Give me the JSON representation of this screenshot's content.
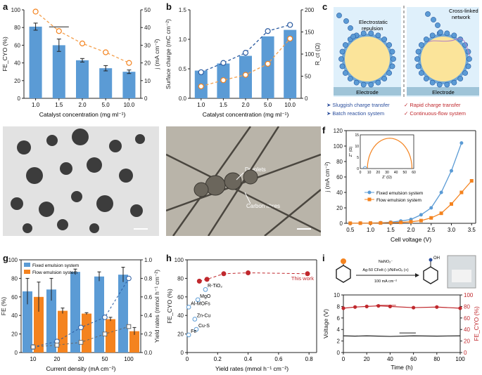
{
  "panel_letters": {
    "a": "a",
    "b": "b",
    "c": "c",
    "d": "d",
    "e": "e",
    "f": "f",
    "g": "g",
    "h": "h",
    "i": "i"
  },
  "colors": {
    "bar_blue": "#5b9bd5",
    "bar_orange": "#f4831f",
    "red": "#c0282d",
    "dark": "#222222",
    "navy": "#2a4d9c"
  },
  "panel_c": {
    "left_text_1": "Electrostatic",
    "left_text_2": "repulsion",
    "right_text_1": "Cross-linked",
    "right_text_2": "network",
    "electrode": "Electrode",
    "left_bullet_1": "➤ Sluggish charge transfer",
    "left_bullet_2": "➤ Batch reaction system",
    "right_bullet_1": "✓ Rapid charge transfer",
    "right_bullet_2": "✓ Continuous-flow system"
  },
  "panel_e": {
    "droplets": "Droplets",
    "fibres": "Carbon fibres"
  },
  "panel_i": {
    "reagent_1": "NaNO₂⁻",
    "reagent_2": "Ag-50 CFelt (–)/NiFeOₓ (+)",
    "reagent_3": "100 mA cm⁻²",
    "product_group": "OH"
  },
  "chart_data": [
    {
      "id": "a",
      "type": "bar",
      "categories": [
        "1.0",
        "1.5",
        "2.0",
        "5.0",
        "10.0"
      ],
      "series": [
        {
          "axis": "left",
          "values": [
            81,
            60,
            43,
            34,
            30
          ],
          "errors": [
            4,
            7,
            2,
            3,
            2
          ]
        },
        {
          "axis": "right",
          "values": [
            49,
            38,
            31,
            26,
            20
          ]
        }
      ],
      "xlabel": "Catalyst concentration (mg ml⁻¹)",
      "ylabel": "FE_CYO (%)",
      "ylabel_right": "j (mA cm⁻²)",
      "ylim": [
        0,
        100
      ],
      "ylim_right": [
        0,
        50
      ],
      "yticks": [
        0,
        20,
        40,
        60,
        80,
        100
      ],
      "yticks_right": [
        0,
        10,
        20,
        30,
        40,
        50
      ]
    },
    {
      "id": "b",
      "type": "bar",
      "categories": [
        "1.0",
        "1.5",
        "2.0",
        "5.0",
        "10.0"
      ],
      "series": [
        {
          "axis": "left",
          "values": [
            0.47,
            0.59,
            0.72,
            1.05,
            1.16
          ]
        },
        {
          "axis": "right",
          "values": [
            59,
            80,
            103,
            152,
            166
          ]
        },
        {
          "axis": "right",
          "values": [
            27,
            41,
            53,
            78,
            135
          ]
        }
      ],
      "xlabel": "Catalyst concentration (mg ml⁻¹)",
      "ylabel": "Surface charge (mC cm⁻²)",
      "ylabel_right": "R_ct (Ω)",
      "ylim": [
        0,
        1.5
      ],
      "ylim_right": [
        0,
        200
      ],
      "yticks": [
        0,
        0.5,
        1.0,
        1.5
      ],
      "yticks_right": [
        0,
        50,
        100,
        150,
        200
      ]
    },
    {
      "id": "f",
      "type": "line",
      "x": [
        0.5,
        0.75,
        1.0,
        1.25,
        1.5,
        1.75,
        2.0,
        2.25,
        2.5,
        2.75,
        3.0,
        3.25
      ],
      "series": [
        {
          "name": "Fixed emulsion system",
          "values": [
            0.1,
            0.2,
            0.4,
            0.8,
            1.5,
            3,
            5,
            11,
            20,
            40,
            68,
            104
          ]
        },
        {
          "name": "Flow emulsion system",
          "values": [
            0.1,
            0.2,
            0.3,
            0.5,
            0.8,
            1.2,
            2,
            3.5,
            7,
            13,
            25,
            40
          ]
        }
      ],
      "x_extra_flow": [
        3.5
      ],
      "y_extra_flow": [
        55
      ],
      "xlabel": "Cell voltage (V)",
      "ylabel": "j (mA cm⁻²)",
      "xlim": [
        0.4,
        3.6
      ],
      "ylim": [
        0,
        120
      ],
      "xticks": [
        0.5,
        1.0,
        1.5,
        2.0,
        2.5,
        3.0,
        3.5
      ],
      "yticks": [
        0,
        20,
        40,
        60,
        80,
        100,
        120
      ],
      "inset": {
        "xlabel": "Z' (Ω)",
        "ylabel": "Z'' (Ω)",
        "xticks": [
          0,
          10,
          20,
          30,
          40,
          50,
          60
        ],
        "yticks": [
          0,
          5,
          10,
          15
        ],
        "xlim": [
          0,
          60
        ],
        "ylim": [
          0,
          15
        ]
      }
    },
    {
      "id": "g",
      "type": "bar",
      "categories": [
        "10",
        "20",
        "30",
        "50",
        "100"
      ],
      "series": [
        {
          "name": "Fixed emulsion system",
          "values": [
            66,
            68,
            87,
            82,
            84
          ],
          "errors": [
            14,
            12,
            3,
            5,
            8
          ]
        },
        {
          "name": "Flow emulsion system",
          "values": [
            60,
            45,
            42,
            36,
            23
          ],
          "errors": [
            16,
            3,
            1,
            2,
            4
          ]
        },
        {
          "axis": "right",
          "values": [
            0.06,
            0.12,
            0.27,
            0.38,
            0.8
          ]
        },
        {
          "axis": "right",
          "values": [
            0.06,
            0.08,
            0.11,
            0.2,
            0.28
          ]
        }
      ],
      "xlabel": "Current density (mA cm⁻²)",
      "ylabel": "FE (%)",
      "ylabel_right": "Yield rates (mmol h⁻¹ cm⁻²)",
      "ylim": [
        0,
        100
      ],
      "ylim_right": [
        0,
        1.0
      ],
      "yticks": [
        0,
        20,
        40,
        60,
        80,
        100
      ],
      "yticks_right": [
        0,
        0.2,
        0.4,
        0.6,
        0.8,
        1.0
      ],
      "legend": "top-left"
    },
    {
      "id": "h",
      "type": "scatter",
      "this_work": {
        "x": [
          0.08,
          0.13,
          0.24,
          0.4,
          0.79
        ],
        "y": [
          77,
          79,
          85,
          86,
          85
        ],
        "label": "This work"
      },
      "literature": [
        {
          "label": "MgO",
          "x": 0.07,
          "y": 57
        },
        {
          "label": "R-TiO₂",
          "x": 0.12,
          "y": 68
        },
        {
          "label": "Al-MOFs",
          "x": 0.01,
          "y": 49
        },
        {
          "label": "Zn-Cu",
          "x": 0.05,
          "y": 36
        },
        {
          "label": "Cu-S",
          "x": 0.06,
          "y": 25
        },
        {
          "label": "Fe",
          "x": 0.01,
          "y": 19
        }
      ],
      "xlabel": "Yield rates (mmol h⁻¹ cm⁻²)",
      "ylabel": "FE_CYO (%)",
      "xlim": [
        0,
        0.85
      ],
      "ylim": [
        0,
        100
      ],
      "xticks": [
        0,
        0.2,
        0.4,
        0.6,
        0.8
      ],
      "yticks": [
        0,
        20,
        40,
        60,
        80,
        100
      ]
    },
    {
      "id": "i",
      "type": "line",
      "x": [
        0,
        10,
        20,
        30,
        40,
        60,
        80,
        100
      ],
      "series": [
        {
          "axis": "right",
          "values": [
            77,
            79,
            80,
            81,
            80,
            78,
            79,
            77
          ]
        },
        {
          "axis": "left",
          "values": [
            2.9,
            2.85,
            2.9,
            2.85,
            2.8,
            2.9,
            2.85,
            2.9
          ]
        }
      ],
      "xlabel": "Time (h)",
      "ylabel": "Voltage (V)",
      "ylabel_right": "FE_CYO (%)",
      "xlim": [
        0,
        100
      ],
      "ylim": [
        0,
        10
      ],
      "ylim_right": [
        0,
        100
      ],
      "xticks": [
        0,
        20,
        40,
        60,
        80,
        100
      ],
      "yticks": [
        0,
        2,
        4,
        6,
        8,
        10
      ],
      "yticks_right": [
        0,
        20,
        40,
        60,
        80,
        100
      ]
    }
  ]
}
